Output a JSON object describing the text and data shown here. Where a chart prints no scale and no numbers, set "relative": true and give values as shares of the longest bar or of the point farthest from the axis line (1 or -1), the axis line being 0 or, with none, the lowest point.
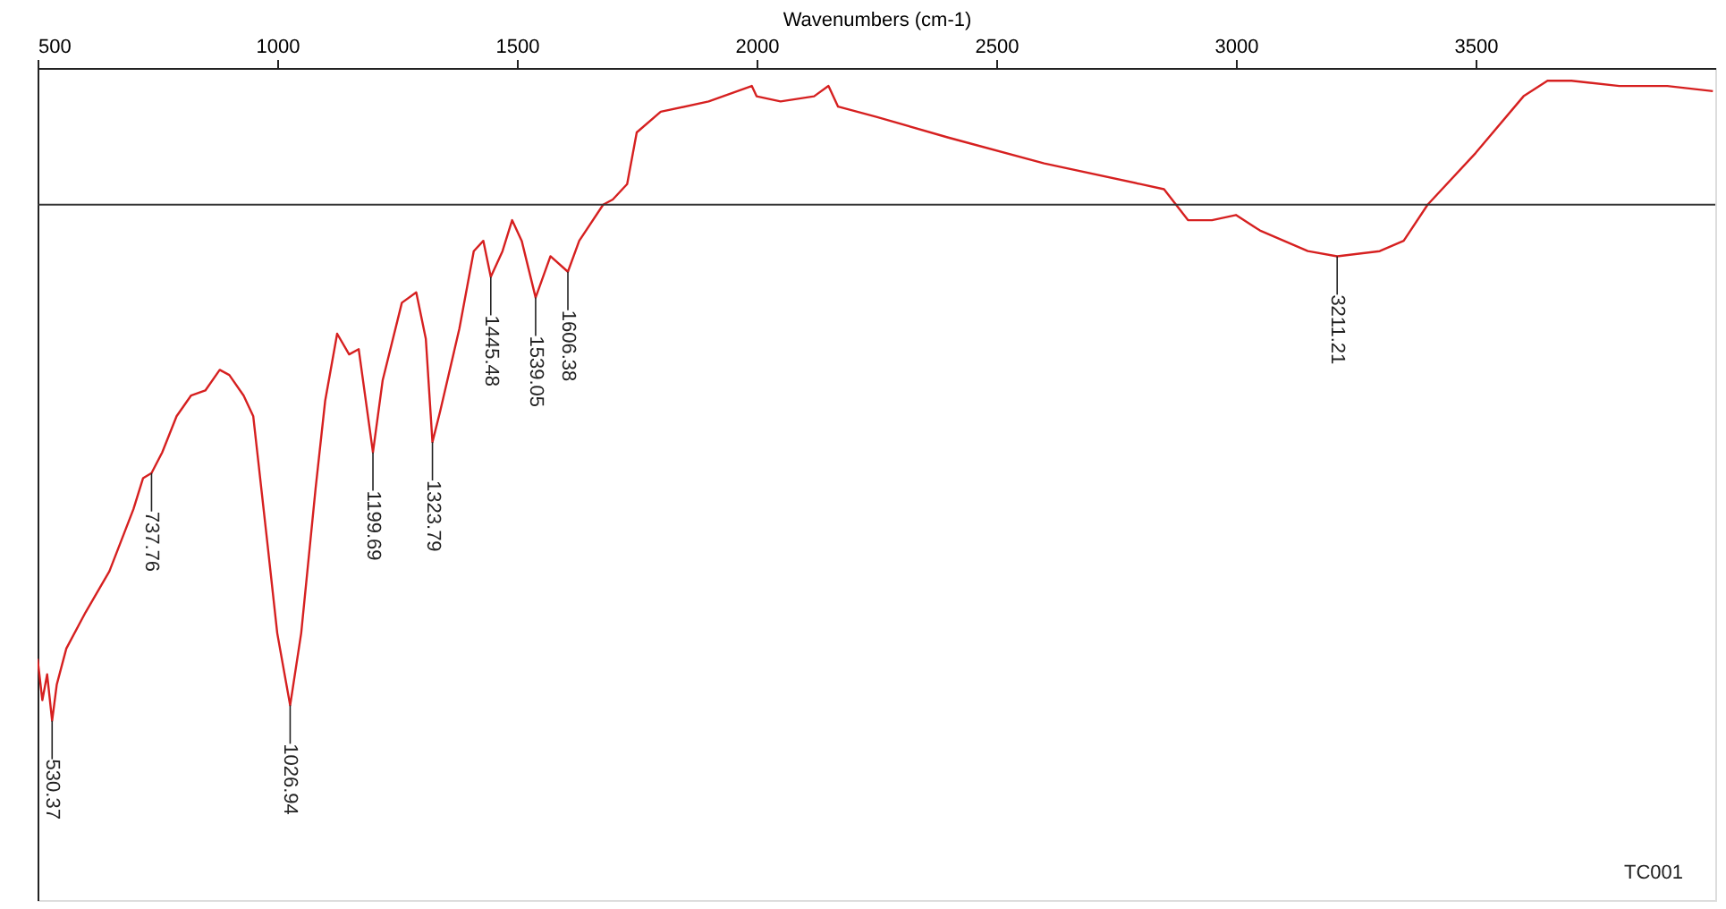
{
  "chart_data": {
    "type": "line",
    "xlabel": "Wavenumbers (cm-1)",
    "relative": true,
    "xlim": [
      500,
      4000
    ],
    "xticks": [
      500,
      {
        "value": 1000,
        "label": "1000"
      },
      {
        "value": 1500,
        "label": "1500"
      },
      {
        "value": 2000,
        "label": "2000"
      },
      {
        "value": 2500,
        "label": "2500"
      },
      {
        "value": 3000,
        "label": "3000"
      },
      {
        "value": 3500,
        "label": "3500"
      }
    ],
    "tick_labels": "x",
    "grid": false,
    "legend": false,
    "marker": "none",
    "line_style": "solid",
    "x": [
      500,
      510,
      520,
      530.37,
      540,
      560,
      600,
      650,
      700,
      720,
      737.76,
      760,
      790,
      820,
      850,
      880,
      900,
      930,
      950,
      980,
      1000,
      1026.94,
      1050,
      1080,
      1100,
      1125,
      1150,
      1170,
      1199.69,
      1220,
      1260,
      1290,
      1310,
      1323.79,
      1340,
      1380,
      1410,
      1430,
      1445.48,
      1470,
      1490,
      1510,
      1539.05,
      1570,
      1606.38,
      1630,
      1680,
      1700,
      1730,
      1750,
      1800,
      1900,
      1990,
      2000,
      2050,
      2120,
      2150,
      2170,
      2250,
      2400,
      2600,
      2800,
      2850,
      2900,
      2950,
      3000,
      3050,
      3150,
      3211.21,
      3300,
      3350,
      3400,
      3500,
      3600,
      3650,
      3700,
      3800,
      3900,
      3995
    ],
    "series": [
      {
        "color": "#d62020",
        "values": [
          -0.88,
          -0.96,
          -0.91,
          -1,
          -0.93,
          -0.86,
          -0.79,
          -0.71,
          -0.59,
          -0.53,
          -0.52,
          -0.48,
          -0.41,
          -0.37,
          -0.36,
          -0.32,
          -0.33,
          -0.37,
          -0.41,
          -0.66,
          -0.83,
          -0.97,
          -0.83,
          -0.55,
          -0.38,
          -0.25,
          -0.29,
          -0.28,
          -0.48,
          -0.34,
          -0.19,
          -0.17,
          -0.26,
          -0.46,
          -0.4,
          -0.24,
          -0.09,
          -0.07,
          -0.14,
          -0.09,
          -0.03,
          -0.07,
          -0.18,
          -0.1,
          -0.13,
          -0.07,
          0,
          0.01,
          0.04,
          0.14,
          0.18,
          0.2,
          0.23,
          0.21,
          0.2,
          0.21,
          0.23,
          0.19,
          0.17,
          0.13,
          0.08,
          0.04,
          0.03,
          -0.03,
          -0.03,
          -0.02,
          -0.05,
          -0.09,
          -0.1,
          -0.09,
          -0.07,
          0,
          0.1,
          0.21,
          0.24,
          0.24,
          0.23,
          0.23,
          0.22
        ]
      }
    ],
    "annotations": [
      {
        "text": "530.37",
        "x": 530.37,
        "y": -1
      },
      {
        "text": "737.76",
        "x": 737.76,
        "y": -0.52
      },
      {
        "text": "1026.94",
        "x": 1026.94,
        "y": -0.97
      },
      {
        "text": "1199.69",
        "x": 1199.69,
        "y": -0.48
      },
      {
        "text": "1323.79",
        "x": 1323.79,
        "y": -0.46
      },
      {
        "text": "1445.48",
        "x": 1445.48,
        "y": -0.14
      },
      {
        "text": "1539.05",
        "x": 1539.05,
        "y": -0.18
      },
      {
        "text": "1606.38",
        "x": 1606.38,
        "y": -0.13
      },
      {
        "text": "3211.21",
        "x": 3211.21,
        "y": -0.1
      },
      "TC001"
    ]
  }
}
